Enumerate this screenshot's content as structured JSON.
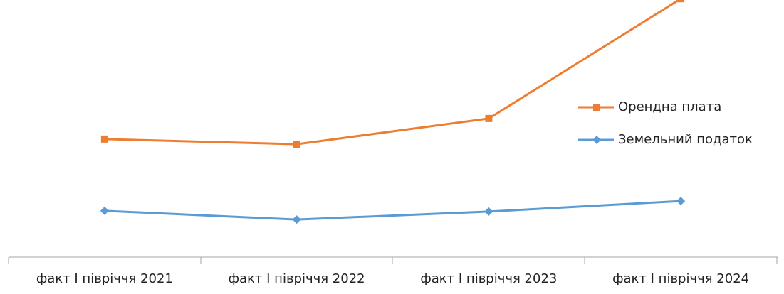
{
  "chart_data": {
    "type": "line",
    "categories": [
      "факт І півріччя 2021",
      "факт І півріччя 2022",
      "факт І півріччя 2023",
      "факт І півріччя 2024"
    ],
    "series": [
      {
        "name": "Орендна плата",
        "color": "#ed7d31",
        "marker": "square",
        "values": [
          45.9,
          43.9,
          53.9,
          100.5
        ]
      },
      {
        "name": "Земельний податок",
        "color": "#5b9bd5",
        "marker": "diamond",
        "values": [
          18.0,
          14.6,
          17.7,
          21.8
        ]
      }
    ],
    "ylim": [
      0,
      100
    ],
    "legend": "right"
  }
}
